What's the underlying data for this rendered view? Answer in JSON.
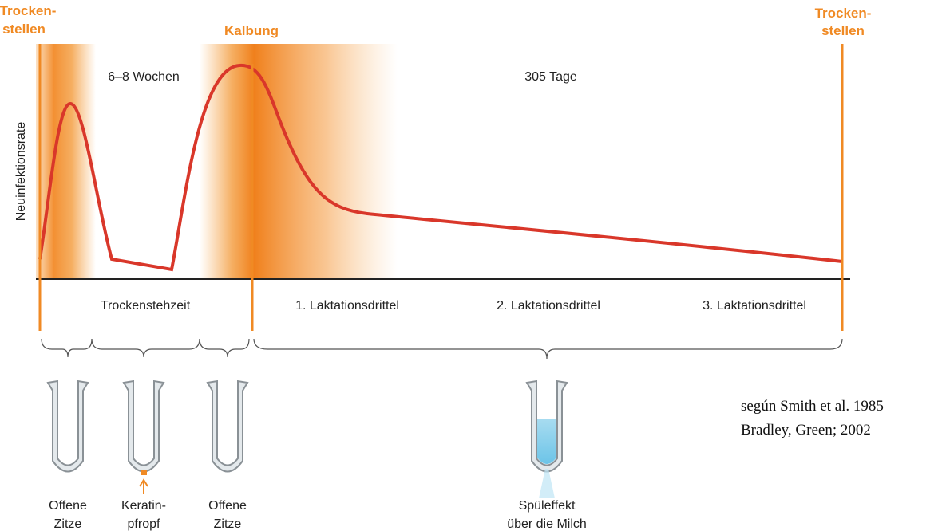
{
  "markers": [
    {
      "lines": [
        "Trocken-",
        "stellen"
      ]
    },
    {
      "lines": [
        "Kalbung"
      ]
    },
    {
      "lines": [
        "Trocken-",
        "stellen"
      ]
    }
  ],
  "durations": [
    "6–8 Wochen",
    "305 Tage"
  ],
  "y_axis_label": "Neuinfektionsrate",
  "phases": [
    "Trockenstehzeit",
    "1. Laktationsdrittel",
    "2. Laktationsdrittel",
    "3. Laktationsdrittel"
  ],
  "teats": [
    {
      "lines": [
        "Offene",
        "Zitze"
      ]
    },
    {
      "lines": [
        "Keratin-",
        "pfropf"
      ]
    },
    {
      "lines": [
        "Offene",
        "Zitze"
      ]
    },
    {
      "lines": [
        "Spüleffekt",
        "über die Milch"
      ]
    }
  ],
  "citation": [
    "según Smith et al. 1985",
    "Bradley, Green; 2002"
  ]
}
